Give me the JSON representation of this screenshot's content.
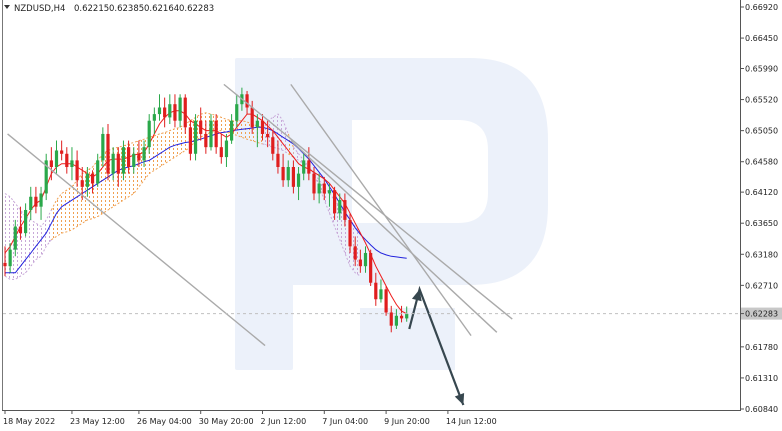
{
  "header": {
    "symbol": "NZDUSD,H4",
    "open": "0.62215",
    "high": "0.62385",
    "low": "0.62164",
    "close": "0.62283"
  },
  "colors": {
    "bull": "#2aa84a",
    "bear": "#e01e1e",
    "tenkan": "#ee1c1c",
    "kijun": "#2222dd",
    "cloud_bear": "#f0a050",
    "cloud_bull": "#c8a8d8",
    "channel": "#aaaaaa",
    "arrow": "#37474f",
    "watermark": "#dde6f6",
    "price_tag_bg": "#c8c8c8"
  },
  "chart_data": {
    "type": "candlestick",
    "symbol": "NZDUSD",
    "timeframe": "H4",
    "ylim": [
      0.6084,
      0.6692
    ],
    "y_ticks": [
      "0.66920",
      "0.66450",
      "0.65990",
      "0.65520",
      "0.65050",
      "0.64580",
      "0.64120",
      "0.63650",
      "0.63180",
      "0.62710",
      "0.62283",
      "0.61780",
      "0.61310",
      "0.60840"
    ],
    "current_price": "0.62283",
    "x_ticks": [
      {
        "label": "18 May 2022",
        "index": 0
      },
      {
        "label": "23 May 12:00",
        "index": 13
      },
      {
        "label": "26 May 04:00",
        "index": 26
      },
      {
        "label": "30 May 20:00",
        "index": 38
      },
      {
        "label": "2 Jun 12:00",
        "index": 50
      },
      {
        "label": "7 Jun 04:00",
        "index": 62
      },
      {
        "label": "9 Jun 20:00",
        "index": 74
      },
      {
        "label": "14 Jun 12:00",
        "index": 86
      }
    ],
    "ohlc": [
      [
        0.6305,
        0.633,
        0.6285,
        0.63
      ],
      [
        0.63,
        0.6335,
        0.629,
        0.6325
      ],
      [
        0.6325,
        0.637,
        0.6315,
        0.636
      ],
      [
        0.636,
        0.639,
        0.634,
        0.635
      ],
      [
        0.635,
        0.6395,
        0.6345,
        0.6385
      ],
      [
        0.6385,
        0.642,
        0.637,
        0.6405
      ],
      [
        0.6405,
        0.642,
        0.638,
        0.639
      ],
      [
        0.639,
        0.642,
        0.637,
        0.641
      ],
      [
        0.641,
        0.647,
        0.64,
        0.646
      ],
      [
        0.646,
        0.648,
        0.643,
        0.645
      ],
      [
        0.645,
        0.649,
        0.644,
        0.6475
      ],
      [
        0.6475,
        0.649,
        0.646,
        0.647
      ],
      [
        0.647,
        0.648,
        0.644,
        0.645
      ],
      [
        0.645,
        0.648,
        0.643,
        0.646
      ],
      [
        0.646,
        0.6475,
        0.642,
        0.643
      ],
      [
        0.643,
        0.645,
        0.64,
        0.642
      ],
      [
        0.642,
        0.645,
        0.6405,
        0.644
      ],
      [
        0.644,
        0.6445,
        0.641,
        0.6425
      ],
      [
        0.6425,
        0.647,
        0.642,
        0.646
      ],
      [
        0.646,
        0.651,
        0.645,
        0.65
      ],
      [
        0.65,
        0.6515,
        0.643,
        0.644
      ],
      [
        0.644,
        0.648,
        0.643,
        0.647
      ],
      [
        0.647,
        0.648,
        0.642,
        0.644
      ],
      [
        0.644,
        0.649,
        0.643,
        0.648
      ],
      [
        0.648,
        0.649,
        0.644,
        0.645
      ],
      [
        0.645,
        0.648,
        0.644,
        0.647
      ],
      [
        0.647,
        0.649,
        0.645,
        0.646
      ],
      [
        0.646,
        0.649,
        0.645,
        0.648
      ],
      [
        0.648,
        0.653,
        0.647,
        0.652
      ],
      [
        0.652,
        0.654,
        0.65,
        0.653
      ],
      [
        0.653,
        0.656,
        0.652,
        0.654
      ],
      [
        0.654,
        0.6555,
        0.651,
        0.6525
      ],
      [
        0.6525,
        0.656,
        0.6515,
        0.6545
      ],
      [
        0.6545,
        0.656,
        0.651,
        0.652
      ],
      [
        0.652,
        0.656,
        0.651,
        0.6555
      ],
      [
        0.6555,
        0.656,
        0.65,
        0.651
      ],
      [
        0.651,
        0.652,
        0.646,
        0.647
      ],
      [
        0.647,
        0.653,
        0.646,
        0.652
      ],
      [
        0.652,
        0.654,
        0.649,
        0.65
      ],
      [
        0.65,
        0.652,
        0.647,
        0.648
      ],
      [
        0.648,
        0.653,
        0.6475,
        0.652
      ],
      [
        0.652,
        0.653,
        0.647,
        0.648
      ],
      [
        0.648,
        0.65,
        0.6455,
        0.6465
      ],
      [
        0.6465,
        0.65,
        0.645,
        0.649
      ],
      [
        0.649,
        0.653,
        0.6485,
        0.652
      ],
      [
        0.652,
        0.656,
        0.651,
        0.6545
      ],
      [
        0.6545,
        0.657,
        0.6535,
        0.656
      ],
      [
        0.656,
        0.6565,
        0.653,
        0.654
      ],
      [
        0.654,
        0.655,
        0.65,
        0.651
      ],
      [
        0.651,
        0.653,
        0.648,
        0.652
      ],
      [
        0.652,
        0.653,
        0.649,
        0.65
      ],
      [
        0.65,
        0.652,
        0.648,
        0.6495
      ],
      [
        0.6495,
        0.6505,
        0.646,
        0.647
      ],
      [
        0.647,
        0.649,
        0.644,
        0.645
      ],
      [
        0.645,
        0.647,
        0.642,
        0.643
      ],
      [
        0.643,
        0.646,
        0.642,
        0.645
      ],
      [
        0.645,
        0.646,
        0.641,
        0.642
      ],
      [
        0.642,
        0.645,
        0.64,
        0.644
      ],
      [
        0.644,
        0.647,
        0.643,
        0.646
      ],
      [
        0.646,
        0.648,
        0.643,
        0.644
      ],
      [
        0.644,
        0.645,
        0.64,
        0.641
      ],
      [
        0.641,
        0.644,
        0.6395,
        0.6425
      ],
      [
        0.6425,
        0.6435,
        0.64,
        0.641
      ],
      [
        0.641,
        0.6425,
        0.639,
        0.6415
      ],
      [
        0.6415,
        0.642,
        0.637,
        0.638
      ],
      [
        0.638,
        0.641,
        0.637,
        0.64
      ],
      [
        0.64,
        0.641,
        0.636,
        0.637
      ],
      [
        0.637,
        0.638,
        0.632,
        0.633
      ],
      [
        0.633,
        0.6345,
        0.63,
        0.631
      ],
      [
        0.631,
        0.6325,
        0.629,
        0.63
      ],
      [
        0.63,
        0.633,
        0.629,
        0.632
      ],
      [
        0.632,
        0.6325,
        0.627,
        0.6275
      ],
      [
        0.6275,
        0.629,
        0.624,
        0.625
      ],
      [
        0.625,
        0.628,
        0.6245,
        0.6265
      ],
      [
        0.6265,
        0.627,
        0.6225,
        0.623
      ],
      [
        0.623,
        0.624,
        0.62,
        0.621
      ],
      [
        0.621,
        0.6235,
        0.6205,
        0.6225
      ],
      [
        0.6225,
        0.624,
        0.6215,
        0.6221
      ],
      [
        0.6221,
        0.6239,
        0.6216,
        0.6228
      ]
    ],
    "tenkan_sen": [
      0.632,
      0.633,
      0.6345,
      0.636,
      0.6372,
      0.6385,
      0.6395,
      0.64,
      0.642,
      0.644,
      0.645,
      0.6455,
      0.6455,
      0.6455,
      0.645,
      0.6445,
      0.644,
      0.6435,
      0.644,
      0.645,
      0.646,
      0.6462,
      0.6462,
      0.6462,
      0.6465,
      0.6468,
      0.647,
      0.6472,
      0.6485,
      0.65,
      0.6515,
      0.6525,
      0.6532,
      0.6535,
      0.6535,
      0.653,
      0.652,
      0.6515,
      0.651,
      0.6505,
      0.6505,
      0.6505,
      0.65,
      0.6495,
      0.65,
      0.651,
      0.652,
      0.653,
      0.653,
      0.6525,
      0.652,
      0.6512,
      0.6505,
      0.6495,
      0.6485,
      0.6475,
      0.6465,
      0.6455,
      0.645,
      0.6447,
      0.6442,
      0.6437,
      0.6432,
      0.6425,
      0.6415,
      0.6405,
      0.6395,
      0.638,
      0.6365,
      0.635,
      0.6335,
      0.6318,
      0.63,
      0.6285,
      0.627,
      0.6255,
      0.6242,
      0.6232,
      0.6228
    ],
    "kijun_sen": [
      0.629,
      0.629,
      0.629,
      0.63,
      0.631,
      0.632,
      0.633,
      0.634,
      0.635,
      0.6365,
      0.638,
      0.639,
      0.6395,
      0.64,
      0.6405,
      0.641,
      0.6415,
      0.642,
      0.6425,
      0.643,
      0.6435,
      0.644,
      0.6445,
      0.6448,
      0.645,
      0.6452,
      0.6455,
      0.6458,
      0.646,
      0.6465,
      0.647,
      0.6475,
      0.648,
      0.6483,
      0.6485,
      0.6487,
      0.6488,
      0.649,
      0.6492,
      0.6495,
      0.6497,
      0.65,
      0.6502,
      0.6503,
      0.6505,
      0.6506,
      0.6507,
      0.6508,
      0.6509,
      0.651,
      0.651,
      0.6508,
      0.6505,
      0.65,
      0.6495,
      0.649,
      0.6485,
      0.6478,
      0.647,
      0.6462,
      0.6452,
      0.6442,
      0.6432,
      0.642,
      0.6408,
      0.6395,
      0.6382,
      0.637,
      0.6358,
      0.6348,
      0.634,
      0.6332,
      0.6325,
      0.632,
      0.6317,
      0.6315,
      0.6314,
      0.6313,
      0.6312
    ],
    "cloud_upper": [
      0.641,
      0.6405,
      0.6395,
      0.6385,
      0.6375,
      0.637,
      0.6365,
      0.636,
      0.637,
      0.6385,
      0.64,
      0.641,
      0.6415,
      0.642,
      0.643,
      0.644,
      0.6445,
      0.645,
      0.646,
      0.647,
      0.6475,
      0.6478,
      0.648,
      0.6482,
      0.6485,
      0.6487,
      0.649,
      0.6492,
      0.6495,
      0.6497,
      0.65,
      0.6502,
      0.6505,
      0.6508,
      0.651,
      0.6515,
      0.652,
      0.6525,
      0.653,
      0.6532,
      0.653,
      0.6528,
      0.6525,
      0.6522,
      0.652,
      0.652,
      0.652,
      0.6518,
      0.6515,
      0.6512,
      0.651,
      0.652,
      0.6525,
      0.653,
      0.652,
      0.65,
      0.648,
      0.647,
      0.646,
      0.645,
      0.644,
      0.642,
      0.64,
      0.638,
      0.636,
      0.634,
      0.632,
      0.63,
      0.629,
      0.6285
    ],
    "cloud_lower": [
      0.6285,
      0.628,
      0.628,
      0.6285,
      0.629,
      0.63,
      0.631,
      0.6315,
      0.633,
      0.634,
      0.6345,
      0.635,
      0.6352,
      0.6355,
      0.636,
      0.6365,
      0.637,
      0.6372,
      0.6375,
      0.638,
      0.6385,
      0.639,
      0.6395,
      0.64,
      0.6405,
      0.641,
      0.642,
      0.643,
      0.644,
      0.6445,
      0.645,
      0.6455,
      0.646,
      0.6465,
      0.647,
      0.6475,
      0.648,
      0.649,
      0.6495,
      0.65,
      0.6502,
      0.6505,
      0.6505,
      0.6503,
      0.65,
      0.6498,
      0.6495,
      0.6492,
      0.649,
      0.6487,
      0.6485,
      0.6483,
      0.648,
      0.6478,
      0.6475,
      0.647,
      0.6465,
      0.646,
      0.6455,
      0.645,
      0.644,
      0.643,
      0.642,
      0.641,
      0.64,
      0.639,
      0.638,
      0.637,
      0.636,
      0.635
    ],
    "cloud_bull_ranges": [
      [
        0,
        8
      ],
      [
        50,
        54
      ],
      [
        56,
        69
      ]
    ],
    "channel_lines": [
      {
        "from": [
          0.5,
          0.65
        ],
        "to": [
          50.5,
          0.618
        ]
      },
      {
        "from": [
          42.5,
          0.6575
        ],
        "to": [
          98.5,
          0.622
        ]
      },
      {
        "from": [
          55.5,
          0.6575
        ],
        "to": [
          90.5,
          0.6195
        ]
      },
      {
        "from": [
          55.5,
          0.649
        ],
        "to": [
          95.5,
          0.62
        ]
      }
    ],
    "forecast_arrow": [
      [
        78.5,
        0.6205
      ],
      [
        80.5,
        0.6265
      ],
      [
        89.0,
        0.609
      ]
    ]
  }
}
